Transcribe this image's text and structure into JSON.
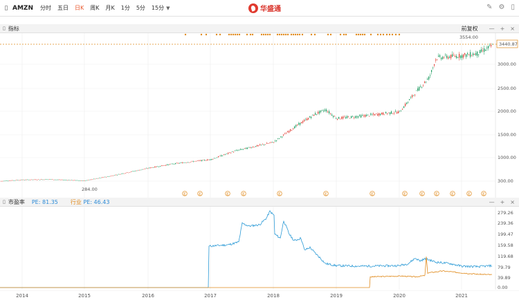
{
  "toolbar": {
    "ticker": "AMZN",
    "periods": [
      "分时",
      "五日",
      "日K",
      "周K",
      "月K",
      "1分",
      "5分",
      "15分"
    ],
    "active_period": "日K",
    "dropdown_icon": "chevron-down-icon",
    "logo_text": "华盛通"
  },
  "price_panel": {
    "label": "前复权",
    "top_label": "3554.00",
    "current_price": "3440.87",
    "low_label": "284.00",
    "y_ticks": [
      "3000.00",
      "2500.00",
      "2000.00",
      "1500.00",
      "1000.00",
      "300.00"
    ],
    "colors": {
      "up": "#e03a2f",
      "down": "#1a9a5e",
      "marker": "#e08a1c"
    }
  },
  "pe_panel": {
    "title": "市盈率",
    "pe_label": "PE: 81.35",
    "industry_label": "行业",
    "industry_pe": "PE: 46.43",
    "y_ticks": [
      "279.26",
      "239.36",
      "199.47",
      "159.58",
      "119.68",
      "79.79",
      "39.89",
      "0.00"
    ],
    "colors": {
      "pe": "#2b9ad6",
      "industry": "#e08a1c"
    }
  },
  "x_axis": [
    "2014",
    "2015",
    "2016",
    "2017",
    "2018",
    "2019",
    "2020",
    "2021"
  ],
  "chart_data": [
    {
      "type": "line",
      "title": "AMZN 日K",
      "x": [
        "2014",
        "2015",
        "2016",
        "2017",
        "2018",
        "2019",
        "2020",
        "2021"
      ],
      "series": [
        {
          "name": "AMZN",
          "values": [
            330,
            310,
            600,
            800,
            1200,
            1750,
            1900,
            3200
          ]
        }
      ],
      "ylim": [
        0,
        3700
      ]
    },
    {
      "type": "line",
      "title": "市盈率",
      "x": [
        "2014",
        "2015",
        "2016",
        "2017",
        "2018",
        "2019",
        "2020",
        "2021"
      ],
      "series": [
        {
          "name": "PE",
          "values": [
            0,
            0,
            0,
            150,
            280,
            100,
            80,
            90
          ]
        },
        {
          "name": "行业 PE",
          "values": [
            0,
            0,
            0,
            0,
            0,
            0,
            45,
            60
          ]
        }
      ],
      "ylim": [
        0,
        300
      ]
    }
  ]
}
